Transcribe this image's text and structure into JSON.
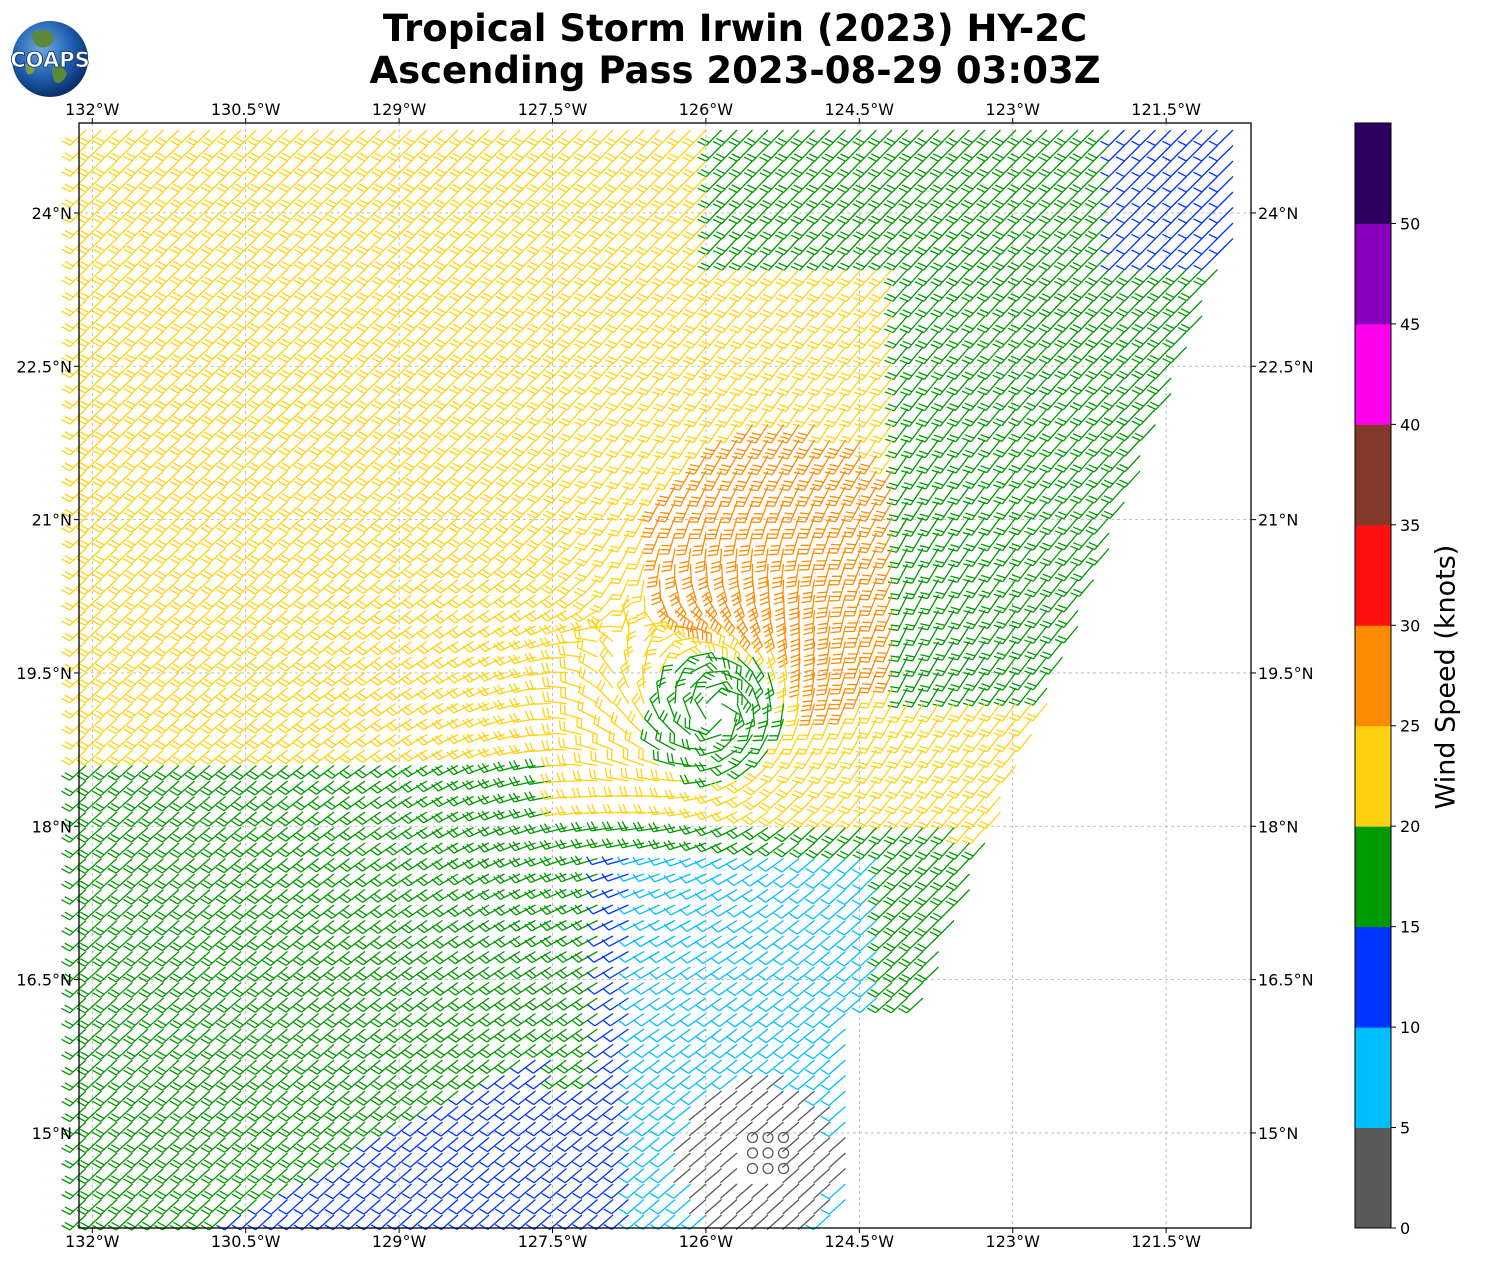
{
  "header": {
    "title_line1": "Tropical Storm Irwin (2023) HY-2C",
    "title_line2": "Ascending Pass 2023-08-29 03:03Z",
    "logo_text": "COAPS"
  },
  "map": {
    "lon_labels": [
      "132°W",
      "130.5°W",
      "129°W",
      "127.5°W",
      "126°W",
      "124.5°W",
      "123°W",
      "121.5°W"
    ],
    "lat_labels": [
      "24°N",
      "22.5°N",
      "21°N",
      "19.5°N",
      "18°N",
      "16.5°N",
      "15°N"
    ],
    "lon_range": [
      -132.13,
      -120.67
    ],
    "lat_range": [
      14.07,
      24.88
    ],
    "storm_center": {
      "lon": -125.9,
      "lat": 19.1
    },
    "calm_center": {
      "lon": -125.4,
      "lat": 14.8
    },
    "wind_barbs": "HY-2C scatterometer wind barbs colored by speed; cyclonic circulation around Irwin"
  },
  "colorbar": {
    "title": "Wind Speed (knots)",
    "ticks": [
      "0",
      "5",
      "10",
      "15",
      "20",
      "25",
      "30",
      "35",
      "40",
      "45",
      "50"
    ],
    "bins": [
      {
        "min": 0,
        "max": 5,
        "color": "#595959"
      },
      {
        "min": 5,
        "max": 10,
        "color": "#00bfff"
      },
      {
        "min": 10,
        "max": 15,
        "color": "#0033ff"
      },
      {
        "min": 15,
        "max": 20,
        "color": "#009900"
      },
      {
        "min": 20,
        "max": 25,
        "color": "#ffd20f"
      },
      {
        "min": 25,
        "max": 30,
        "color": "#ff8c00"
      },
      {
        "min": 30,
        "max": 35,
        "color": "#ff1010"
      },
      {
        "min": 35,
        "max": 40,
        "color": "#843a2a"
      },
      {
        "min": 40,
        "max": 45,
        "color": "#ff00ee"
      },
      {
        "min": 45,
        "max": 50,
        "color": "#8800bb"
      },
      {
        "min": 50,
        "max": 55,
        "color": "#2b005f"
      }
    ]
  }
}
